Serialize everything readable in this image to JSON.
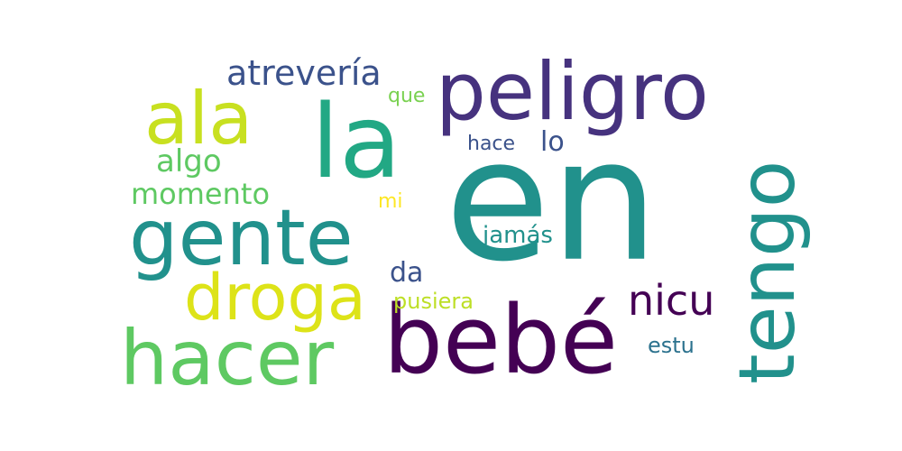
{
  "words": [
    {
      "text": "en",
      "color": "#21918c"
    },
    {
      "text": "bebé",
      "color": "#440154"
    },
    {
      "text": "peligro",
      "color": "#46327e"
    },
    {
      "text": "la",
      "color": "#22a884"
    },
    {
      "text": "tengo",
      "color": "#21918c"
    },
    {
      "text": "gente",
      "color": "#21918c"
    },
    {
      "text": "hacer",
      "color": "#5ec962"
    },
    {
      "text": "ala",
      "color": "#c8e020"
    },
    {
      "text": "droga",
      "color": "#dde318"
    },
    {
      "text": "nicu",
      "color": "#440154"
    },
    {
      "text": "atrevería",
      "color": "#3b528b"
    },
    {
      "text": "momento",
      "color": "#5ec962"
    },
    {
      "text": "algo",
      "color": "#5ec962"
    },
    {
      "text": "lo",
      "color": "#3b528b"
    },
    {
      "text": "da",
      "color": "#3b528b"
    },
    {
      "text": "jamás",
      "color": "#21918c"
    },
    {
      "text": "pusiera",
      "color": "#bddf26"
    },
    {
      "text": "estu",
      "color": "#2c728e"
    },
    {
      "text": "hace",
      "color": "#3b528b"
    },
    {
      "text": "que",
      "color": "#7ad151"
    },
    {
      "text": "mi",
      "color": "#fde725"
    }
  ]
}
